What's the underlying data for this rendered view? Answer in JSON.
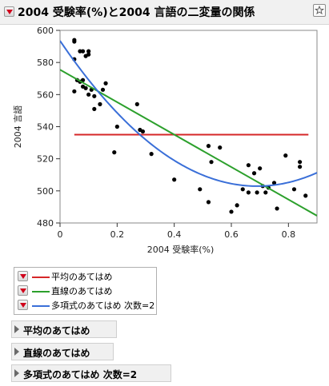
{
  "window": {
    "title": "2004 受験率(%)と2004 言語の二変量の関係"
  },
  "legend": {
    "items": [
      {
        "label": "平均のあてはめ",
        "color": "#d62728"
      },
      {
        "label": "直線のあてはめ",
        "color": "#2ca02c"
      },
      {
        "label": "多項式のあてはめ 次数=2",
        "color": "#3a6fd8"
      }
    ]
  },
  "outlines": [
    {
      "label": "平均のあてはめ"
    },
    {
      "label": "直線のあてはめ"
    },
    {
      "label": "多項式のあてはめ 次数=2"
    }
  ],
  "chart_data": {
    "type": "scatter",
    "xlabel": "2004 受験率(%)",
    "ylabel": "2004 言語",
    "xlim": [
      0,
      0.9
    ],
    "ylim": [
      480,
      600
    ],
    "xticks": [
      0,
      0.2,
      0.4,
      0.6,
      0.8
    ],
    "yticks": [
      480,
      500,
      520,
      540,
      560,
      580,
      600
    ],
    "grid": false,
    "points": [
      [
        0.05,
        594
      ],
      [
        0.05,
        593
      ],
      [
        0.05,
        582
      ],
      [
        0.06,
        569
      ],
      [
        0.07,
        568
      ],
      [
        0.07,
        587
      ],
      [
        0.08,
        587
      ],
      [
        0.08,
        569
      ],
      [
        0.08,
        565
      ],
      [
        0.09,
        584
      ],
      [
        0.09,
        564
      ],
      [
        0.1,
        587
      ],
      [
        0.1,
        585
      ],
      [
        0.1,
        560
      ],
      [
        0.11,
        563
      ],
      [
        0.12,
        559
      ],
      [
        0.12,
        551
      ],
      [
        0.14,
        554
      ],
      [
        0.15,
        563
      ],
      [
        0.16,
        567
      ],
      [
        0.05,
        562
      ],
      [
        0.19,
        524
      ],
      [
        0.2,
        540
      ],
      [
        0.27,
        554
      ],
      [
        0.28,
        538
      ],
      [
        0.29,
        537
      ],
      [
        0.32,
        523
      ],
      [
        0.4,
        507
      ],
      [
        0.49,
        501
      ],
      [
        0.52,
        528
      ],
      [
        0.53,
        518
      ],
      [
        0.52,
        493
      ],
      [
        0.56,
        527
      ],
      [
        0.6,
        487
      ],
      [
        0.62,
        491
      ],
      [
        0.64,
        501
      ],
      [
        0.66,
        516
      ],
      [
        0.66,
        499
      ],
      [
        0.68,
        511
      ],
      [
        0.69,
        499
      ],
      [
        0.7,
        514
      ],
      [
        0.71,
        503
      ],
      [
        0.72,
        499
      ],
      [
        0.73,
        502
      ],
      [
        0.75,
        505
      ],
      [
        0.76,
        489
      ],
      [
        0.79,
        522
      ],
      [
        0.82,
        501
      ],
      [
        0.84,
        518
      ],
      [
        0.84,
        515
      ],
      [
        0.86,
        497
      ]
    ],
    "fits": [
      {
        "name": "平均のあてはめ",
        "kind": "mean",
        "color": "#d62728",
        "x_range": [
          0.05,
          0.87
        ],
        "y": 535
      },
      {
        "name": "直線のあてはめ",
        "kind": "line",
        "color": "#2ca02c",
        "y_at_xmin": 575.5,
        "y_at_xmax": 484.5
      },
      {
        "name": "多項式のあてはめ 次数=2",
        "kind": "poly2",
        "color": "#3a6fd8",
        "coef": [
          593.5,
          -262.4,
          190.1
        ]
      }
    ]
  }
}
